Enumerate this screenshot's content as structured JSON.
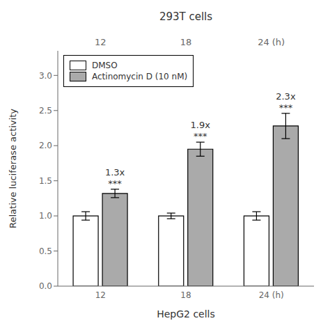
{
  "chart_data": {
    "type": "bar",
    "title": "293T cells",
    "xlabel": "HepG2 cells",
    "ylabel": "Relative luciferase activity",
    "categories": [
      "12",
      "18",
      "24 (h)"
    ],
    "top_categories": [
      "12",
      "18",
      "24 (h)"
    ],
    "series": [
      {
        "name": "DMSO",
        "color": "#FFFFFF",
        "values": [
          1.0,
          1.0,
          1.0
        ],
        "errors": [
          0.06,
          0.04,
          0.06
        ]
      },
      {
        "name": "Actinomycin D (10 nM)",
        "color": "#AAAAAA",
        "values": [
          1.32,
          1.95,
          2.28
        ],
        "errors": [
          0.06,
          0.1,
          0.18
        ]
      }
    ],
    "annotations": [
      {
        "category": "12",
        "series": "Actinomycin D (10 nM)",
        "text": "***"
      },
      {
        "category": "12",
        "series": "Actinomycin D (10 nM)",
        "text": "1.3x"
      },
      {
        "category": "18",
        "series": "Actinomycin D (10 nM)",
        "text": "***"
      },
      {
        "category": "18",
        "series": "Actinomycin D (10 nM)",
        "text": "1.9x"
      },
      {
        "category": "24 (h)",
        "series": "Actinomycin D (10 nM)",
        "text": "***"
      },
      {
        "category": "24 (h)",
        "series": "Actinomycin D (10 nM)",
        "text": "2.3x"
      }
    ],
    "ylim": [
      0.0,
      3.35
    ],
    "yticks": [
      {
        "value": 0.0,
        "label": "0.0"
      },
      {
        "value": 0.5,
        "label": "0.5"
      },
      {
        "value": 1.0,
        "label": "1.0"
      },
      {
        "value": 1.5,
        "label": "1.5"
      },
      {
        "value": 2.0,
        "label": "2.0"
      },
      {
        "value": 2.5,
        "label": "2.5"
      },
      {
        "value": 3.0,
        "label": "3.0"
      }
    ],
    "legend": "upper left",
    "grid": false
  }
}
